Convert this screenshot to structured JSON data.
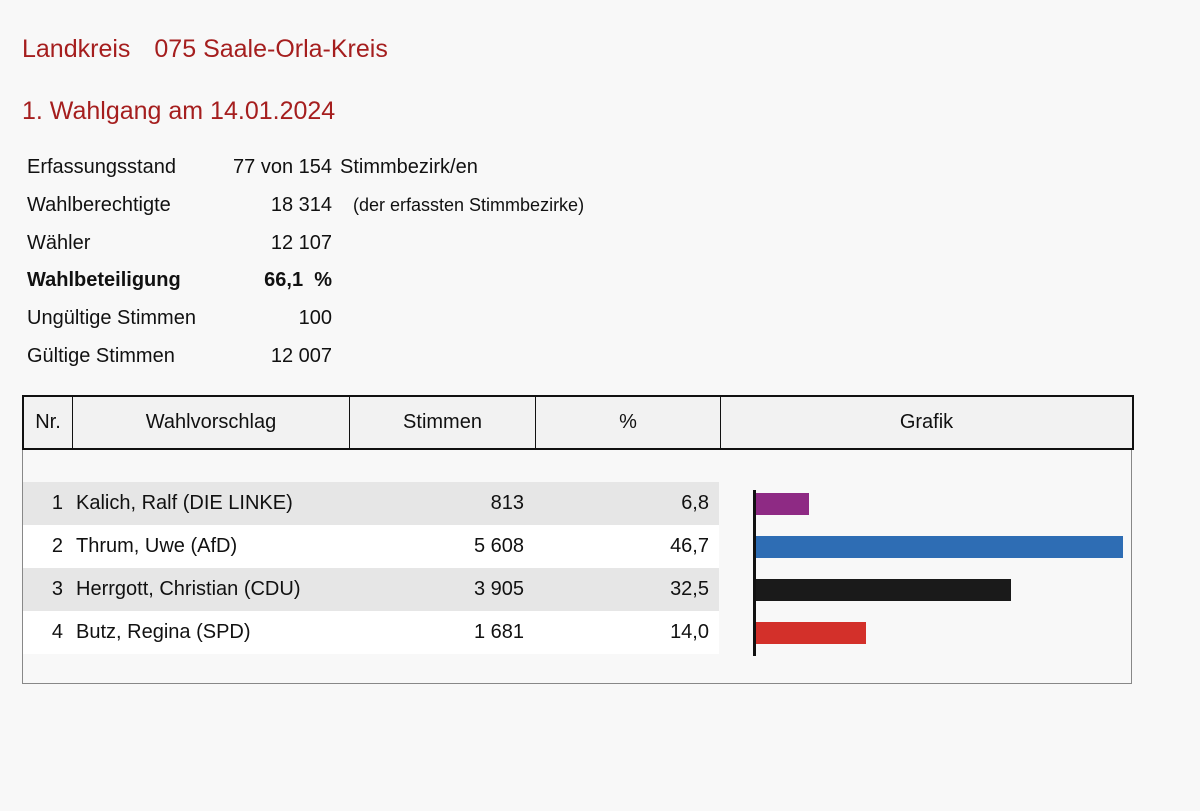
{
  "header": {
    "district_label": "Landkreis",
    "district_name": "075 Saale-Orla-Kreis",
    "round": "1. Wahlgang am 14.01.2024"
  },
  "stats": {
    "erfassungsstand": {
      "label": "Erfassungsstand",
      "value": "77 von 154",
      "note": "Stimmbezirk/en"
    },
    "wahlberechtigte": {
      "label": "Wahlberechtigte",
      "value": "18 314",
      "note": "(der erfassten Stimmbezirke)"
    },
    "waehler": {
      "label": "Wähler",
      "value": "12 107"
    },
    "wahlbeteiligung": {
      "label": "Wahlbeteiligung",
      "value": "66,1  %"
    },
    "ungueltige": {
      "label": "Ungültige Stimmen",
      "value": "100"
    },
    "gueltige": {
      "label": "Gültige Stimmen",
      "value": "12 007"
    }
  },
  "table": {
    "headers": {
      "nr": "Nr.",
      "name": "Wahlvorschlag",
      "votes": "Stimmen",
      "pct": "%",
      "graph": "Grafik"
    },
    "rows": [
      {
        "nr": "1",
        "name": "Kalich, Ralf (DIE LINKE)",
        "votes": "813",
        "pct": "6,8",
        "share": 6.8,
        "color": "#8e2a84"
      },
      {
        "nr": "2",
        "name": "Thrum, Uwe (AfD)",
        "votes": "5 608",
        "pct": "46,7",
        "share": 46.7,
        "color": "#2e6db4"
      },
      {
        "nr": "3",
        "name": "Herrgott, Christian (CDU)",
        "votes": "3 905",
        "pct": "32,5",
        "share": 32.5,
        "color": "#1a1a1a"
      },
      {
        "nr": "4",
        "name": "Butz, Regina (SPD)",
        "votes": "1 681",
        "pct": "14,0",
        "share": 14.0,
        "color": "#d3302a"
      }
    ]
  }
}
